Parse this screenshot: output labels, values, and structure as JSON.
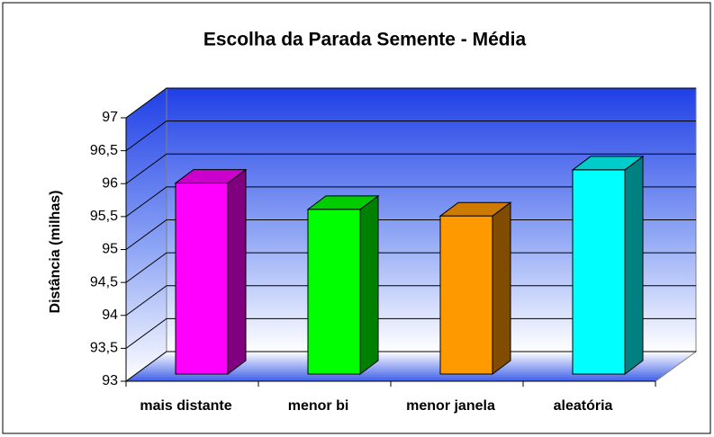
{
  "chart_data": {
    "type": "bar3d",
    "title": "Escolha da Parada Semente - Média",
    "y_label": "Distância (milhas)",
    "categories": [
      "mais distante",
      "menor bi",
      "menor janela",
      "aleatória"
    ],
    "values": [
      95.9,
      95.5,
      95.4,
      96.1
    ],
    "colors": [
      "#ff00ff",
      "#00ff00",
      "#ff9900",
      "#00ffff"
    ],
    "ylim": [
      93,
      97
    ],
    "yticks": [
      93,
      {
        "value": 93.5,
        "label": "93,5"
      },
      94,
      {
        "value": 94.5,
        "label": "94,5"
      },
      95,
      {
        "value": 95.5,
        "label": "95,5"
      },
      96,
      {
        "value": 96.5,
        "label": "96,5"
      },
      97
    ],
    "grid": true
  }
}
